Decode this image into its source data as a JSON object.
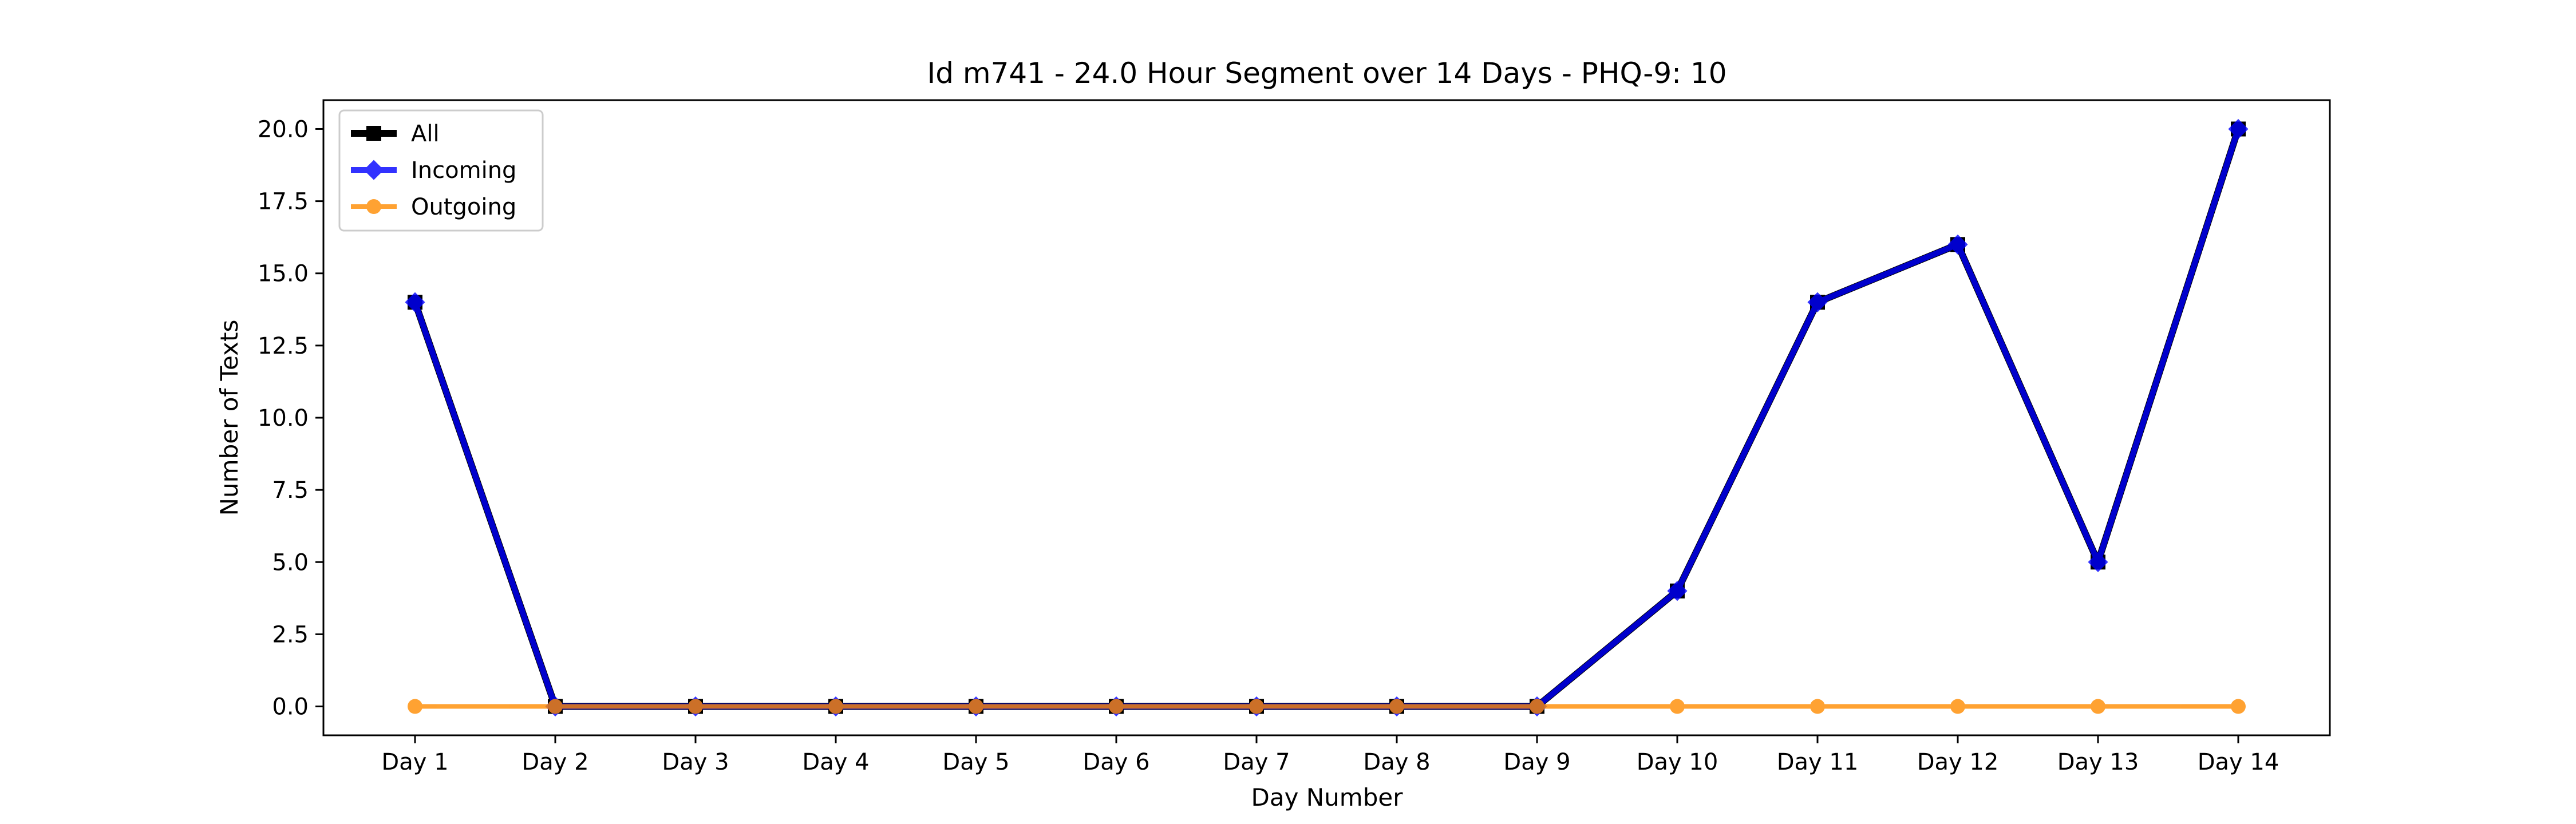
{
  "chart_data": {
    "type": "line",
    "title": "Id m741 - 24.0 Hour Segment over 14 Days - PHQ-9: 10",
    "xlabel": "Day Number",
    "ylabel": "Number of Texts",
    "categories": [
      "Day 1",
      "Day 2",
      "Day 3",
      "Day 4",
      "Day 5",
      "Day 6",
      "Day 7",
      "Day 8",
      "Day 9",
      "Day 10",
      "Day 11",
      "Day 12",
      "Day 13",
      "Day 14"
    ],
    "ylim": [
      -1.0,
      21.0
    ],
    "yticks": [
      0.0,
      2.5,
      5.0,
      7.5,
      10.0,
      12.5,
      15.0,
      17.5,
      20.0
    ],
    "ytick_labels": [
      "0.0",
      "2.5",
      "5.0",
      "7.5",
      "10.0",
      "12.5",
      "15.0",
      "17.5",
      "20.0"
    ],
    "grid": false,
    "legend_position": "top-left",
    "series": [
      {
        "name": "All",
        "color": "#000000",
        "marker": "square",
        "values": [
          14,
          0,
          0,
          0,
          0,
          0,
          0,
          0,
          0,
          4,
          14,
          16,
          5,
          20
        ]
      },
      {
        "name": "Incoming",
        "color": "#0000ff",
        "marker": "diamond",
        "values": [
          14,
          0,
          0,
          0,
          0,
          0,
          0,
          0,
          0,
          4,
          14,
          16,
          5,
          20
        ]
      },
      {
        "name": "Outgoing",
        "color": "#ff8c00",
        "marker": "circle",
        "values": [
          0,
          0,
          0,
          0,
          0,
          0,
          0,
          0,
          0,
          0,
          0,
          0,
          0,
          0
        ]
      }
    ]
  }
}
